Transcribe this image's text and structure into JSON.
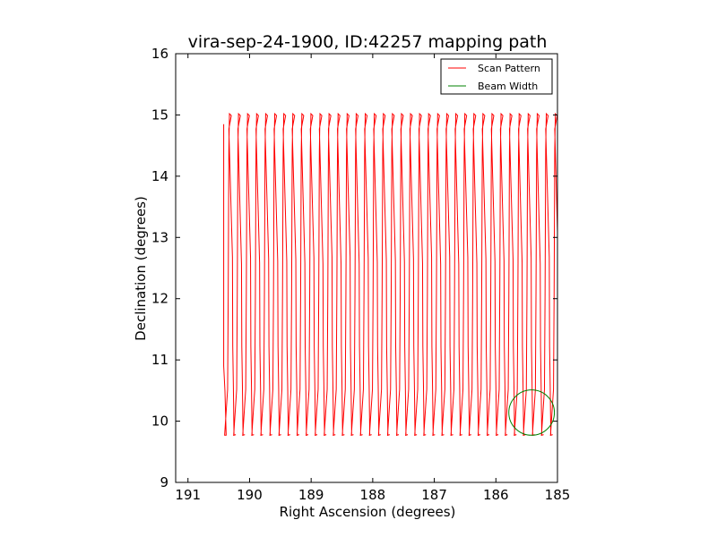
{
  "chart_data": {
    "type": "line",
    "title": "vira-sep-24-1900, ID:42257 mapping path",
    "xlabel": "Right Ascension (degrees)",
    "ylabel": "Declination (degrees)",
    "xlim": [
      191.2,
      185.0
    ],
    "ylim": [
      9,
      16
    ],
    "x_inverted": true,
    "xticks": [
      "191",
      "190",
      "189",
      "188",
      "187",
      "186",
      "185"
    ],
    "xtick_values": [
      191,
      190,
      189,
      188,
      187,
      186,
      185
    ],
    "yticks": [
      "9",
      "10",
      "11",
      "12",
      "13",
      "14",
      "15",
      "16"
    ],
    "ytick_values": [
      9,
      10,
      11,
      12,
      13,
      14,
      15,
      16
    ],
    "grid": false,
    "legend_position": "top-right",
    "series": [
      {
        "name": "Scan Pattern",
        "color": "#ff0000",
        "ra_start": 190.42,
        "ra_end": 185.0,
        "ra_step": 0.147,
        "dec_low": 9.77,
        "dec_high": 15.02,
        "points": [
          [
            190.42,
            14.85
          ],
          [
            190.42,
            10.9
          ],
          [
            190.4,
            10.5
          ],
          [
            190.38,
            9.77
          ]
        ]
      },
      {
        "name": "Beam Width",
        "color": "#008000",
        "shape": "circle",
        "center": [
          185.42,
          10.14
        ],
        "radius_deg": 0.37
      }
    ]
  }
}
